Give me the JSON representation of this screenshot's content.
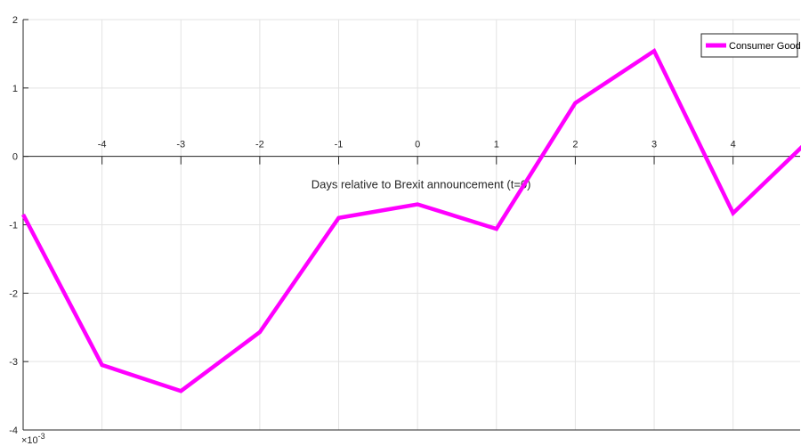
{
  "chart_data": {
    "type": "line",
    "title": "",
    "xlabel": "Days relative to Brexit announcement (t=0)",
    "ylabel": "",
    "y_scale_label": "10^-3",
    "y_scale_prefix": "×10",
    "y_scale_exponent": "-3",
    "x": [
      -5,
      -4,
      -3,
      -2,
      -1,
      0,
      1,
      2,
      3,
      4,
      5
    ],
    "xlim": [
      -5,
      4.85
    ],
    "ylim": [
      -4,
      2
    ],
    "xticks": [
      -4,
      -3,
      -2,
      -1,
      0,
      1,
      2,
      3,
      4
    ],
    "yticks": [
      -4,
      -3,
      -2,
      -1,
      0,
      1,
      2
    ],
    "grid": true,
    "legend_position": "top-right",
    "series": [
      {
        "name": "Consumer Goods",
        "color": "#ff00ff",
        "values": [
          -0.85,
          -3.05,
          -3.43,
          -2.57,
          -0.9,
          -0.7,
          -1.06,
          0.78,
          1.54,
          -0.83,
          0.28
        ]
      }
    ]
  }
}
